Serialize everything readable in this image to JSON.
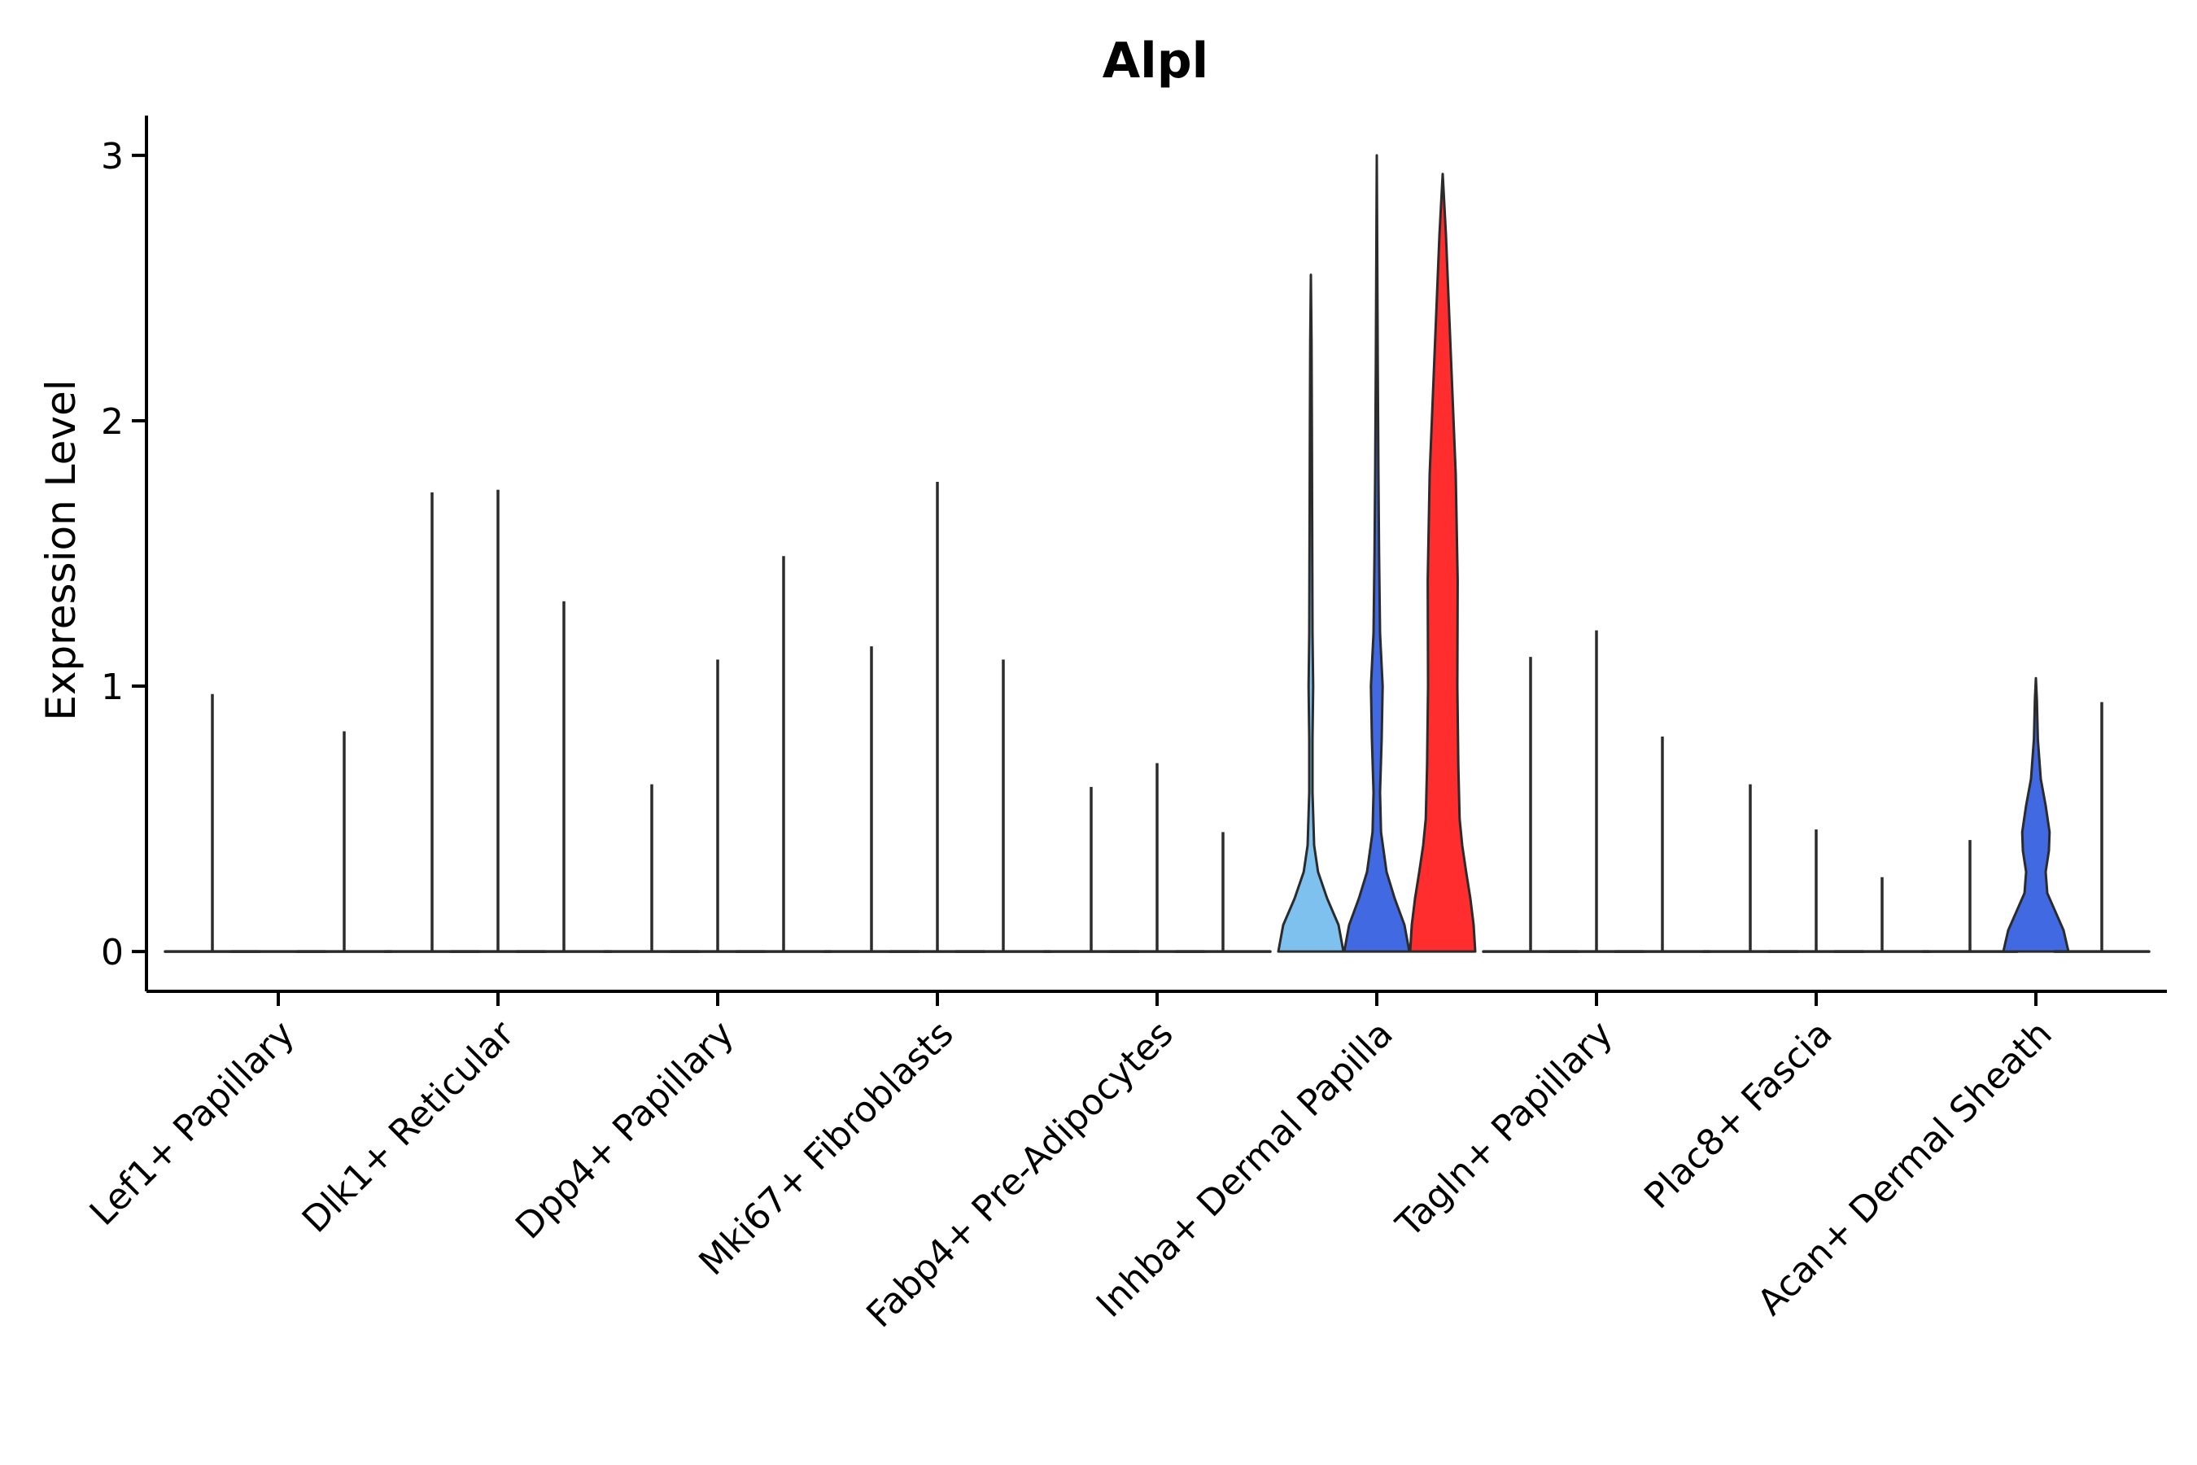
{
  "chart_data": {
    "type": "violin",
    "title": "Alpl",
    "xlabel": "",
    "ylabel": "Expression Level",
    "ylim": [
      -0.15,
      3.15
    ],
    "yticks": [
      0,
      1,
      2,
      3
    ],
    "ytick_labels": [
      "0",
      "1",
      "2",
      "3"
    ],
    "legend": "none",
    "grid": false,
    "colors": {
      "sample1": "#7ec0ee",
      "sample2": "#4169e1",
      "sample3": "#ff2d2d",
      "outline": "#2b2b2b",
      "axis": "#000000"
    },
    "groups": [
      {
        "label": "Lef1+ Papillary",
        "violins": [
          {
            "max": 0.97,
            "fill": "none"
          },
          {
            "max": 0.0,
            "fill": "none"
          },
          {
            "max": 0.83,
            "fill": "none"
          }
        ]
      },
      {
        "label": "Dlk1+ Reticular",
        "violins": [
          {
            "max": 1.73,
            "fill": "none"
          },
          {
            "max": 1.74,
            "fill": "none"
          },
          {
            "max": 1.32,
            "fill": "none"
          }
        ]
      },
      {
        "label": "Dpp4+ Papillary",
        "violins": [
          {
            "max": 0.63,
            "fill": "none"
          },
          {
            "max": 1.1,
            "fill": "none"
          },
          {
            "max": 1.49,
            "fill": "none"
          }
        ]
      },
      {
        "label": "Mki67+ Fibroblasts",
        "violins": [
          {
            "max": 1.15,
            "fill": "none"
          },
          {
            "max": 1.77,
            "fill": "none"
          },
          {
            "max": 1.1,
            "fill": "none"
          }
        ]
      },
      {
        "label": "Fabp4+ Pre-Adipocytes",
        "violins": [
          {
            "max": 0.62,
            "fill": "none"
          },
          {
            "max": 0.71,
            "fill": "none"
          },
          {
            "max": 0.45,
            "fill": "none"
          }
        ]
      },
      {
        "label": "Inhba+ Dermal Papilla",
        "violins": [
          {
            "max": 2.55,
            "fill": "sample1",
            "profile": [
              [
                0,
                1.0
              ],
              [
                0.1,
                0.85
              ],
              [
                0.2,
                0.5
              ],
              [
                0.3,
                0.22
              ],
              [
                0.4,
                0.1
              ],
              [
                0.6,
                0.05
              ],
              [
                0.8,
                0.05
              ],
              [
                1.0,
                0.07
              ],
              [
                1.2,
                0.05
              ],
              [
                1.6,
                0.04
              ],
              [
                2.0,
                0.03
              ],
              [
                2.3,
                0.02
              ],
              [
                2.55,
                0.0
              ]
            ]
          },
          {
            "max": 3.0,
            "fill": "sample2",
            "profile": [
              [
                0,
                1.0
              ],
              [
                0.1,
                0.85
              ],
              [
                0.2,
                0.55
              ],
              [
                0.3,
                0.3
              ],
              [
                0.45,
                0.13
              ],
              [
                0.6,
                0.1
              ],
              [
                0.8,
                0.15
              ],
              [
                1.0,
                0.18
              ],
              [
                1.2,
                0.1
              ],
              [
                1.5,
                0.07
              ],
              [
                1.8,
                0.05
              ],
              [
                2.2,
                0.03
              ],
              [
                2.6,
                0.015
              ],
              [
                3.0,
                0.0
              ]
            ]
          },
          {
            "max": 2.93,
            "fill": "sample3",
            "profile": [
              [
                0,
                1.0
              ],
              [
                0.1,
                0.95
              ],
              [
                0.2,
                0.85
              ],
              [
                0.3,
                0.72
              ],
              [
                0.4,
                0.6
              ],
              [
                0.5,
                0.52
              ],
              [
                0.7,
                0.48
              ],
              [
                1.0,
                0.45
              ],
              [
                1.4,
                0.46
              ],
              [
                1.8,
                0.4
              ],
              [
                2.1,
                0.3
              ],
              [
                2.4,
                0.2
              ],
              [
                2.7,
                0.1
              ],
              [
                2.93,
                0.0
              ]
            ]
          }
        ]
      },
      {
        "label": "Tagln+ Papillary",
        "violins": [
          {
            "max": 1.11,
            "fill": "none"
          },
          {
            "max": 1.21,
            "fill": "none"
          },
          {
            "max": 0.81,
            "fill": "none"
          }
        ]
      },
      {
        "label": "Plac8+ Fascia",
        "violins": [
          {
            "max": 0.63,
            "fill": "none"
          },
          {
            "max": 0.46,
            "fill": "none"
          },
          {
            "max": 0.28,
            "fill": "none"
          }
        ]
      },
      {
        "label": "Acan+ Dermal Sheath",
        "violins": [
          {
            "max": 0.42,
            "fill": "none"
          },
          {
            "max": 1.03,
            "fill": "sample2",
            "profile": [
              [
                0,
                1.0
              ],
              [
                0.08,
                0.85
              ],
              [
                0.15,
                0.6
              ],
              [
                0.22,
                0.35
              ],
              [
                0.3,
                0.3
              ],
              [
                0.38,
                0.4
              ],
              [
                0.45,
                0.42
              ],
              [
                0.55,
                0.3
              ],
              [
                0.65,
                0.15
              ],
              [
                0.8,
                0.06
              ],
              [
                0.95,
                0.03
              ],
              [
                1.03,
                0.0
              ]
            ]
          },
          {
            "max": 0.94,
            "fill": "none"
          }
        ]
      }
    ]
  }
}
